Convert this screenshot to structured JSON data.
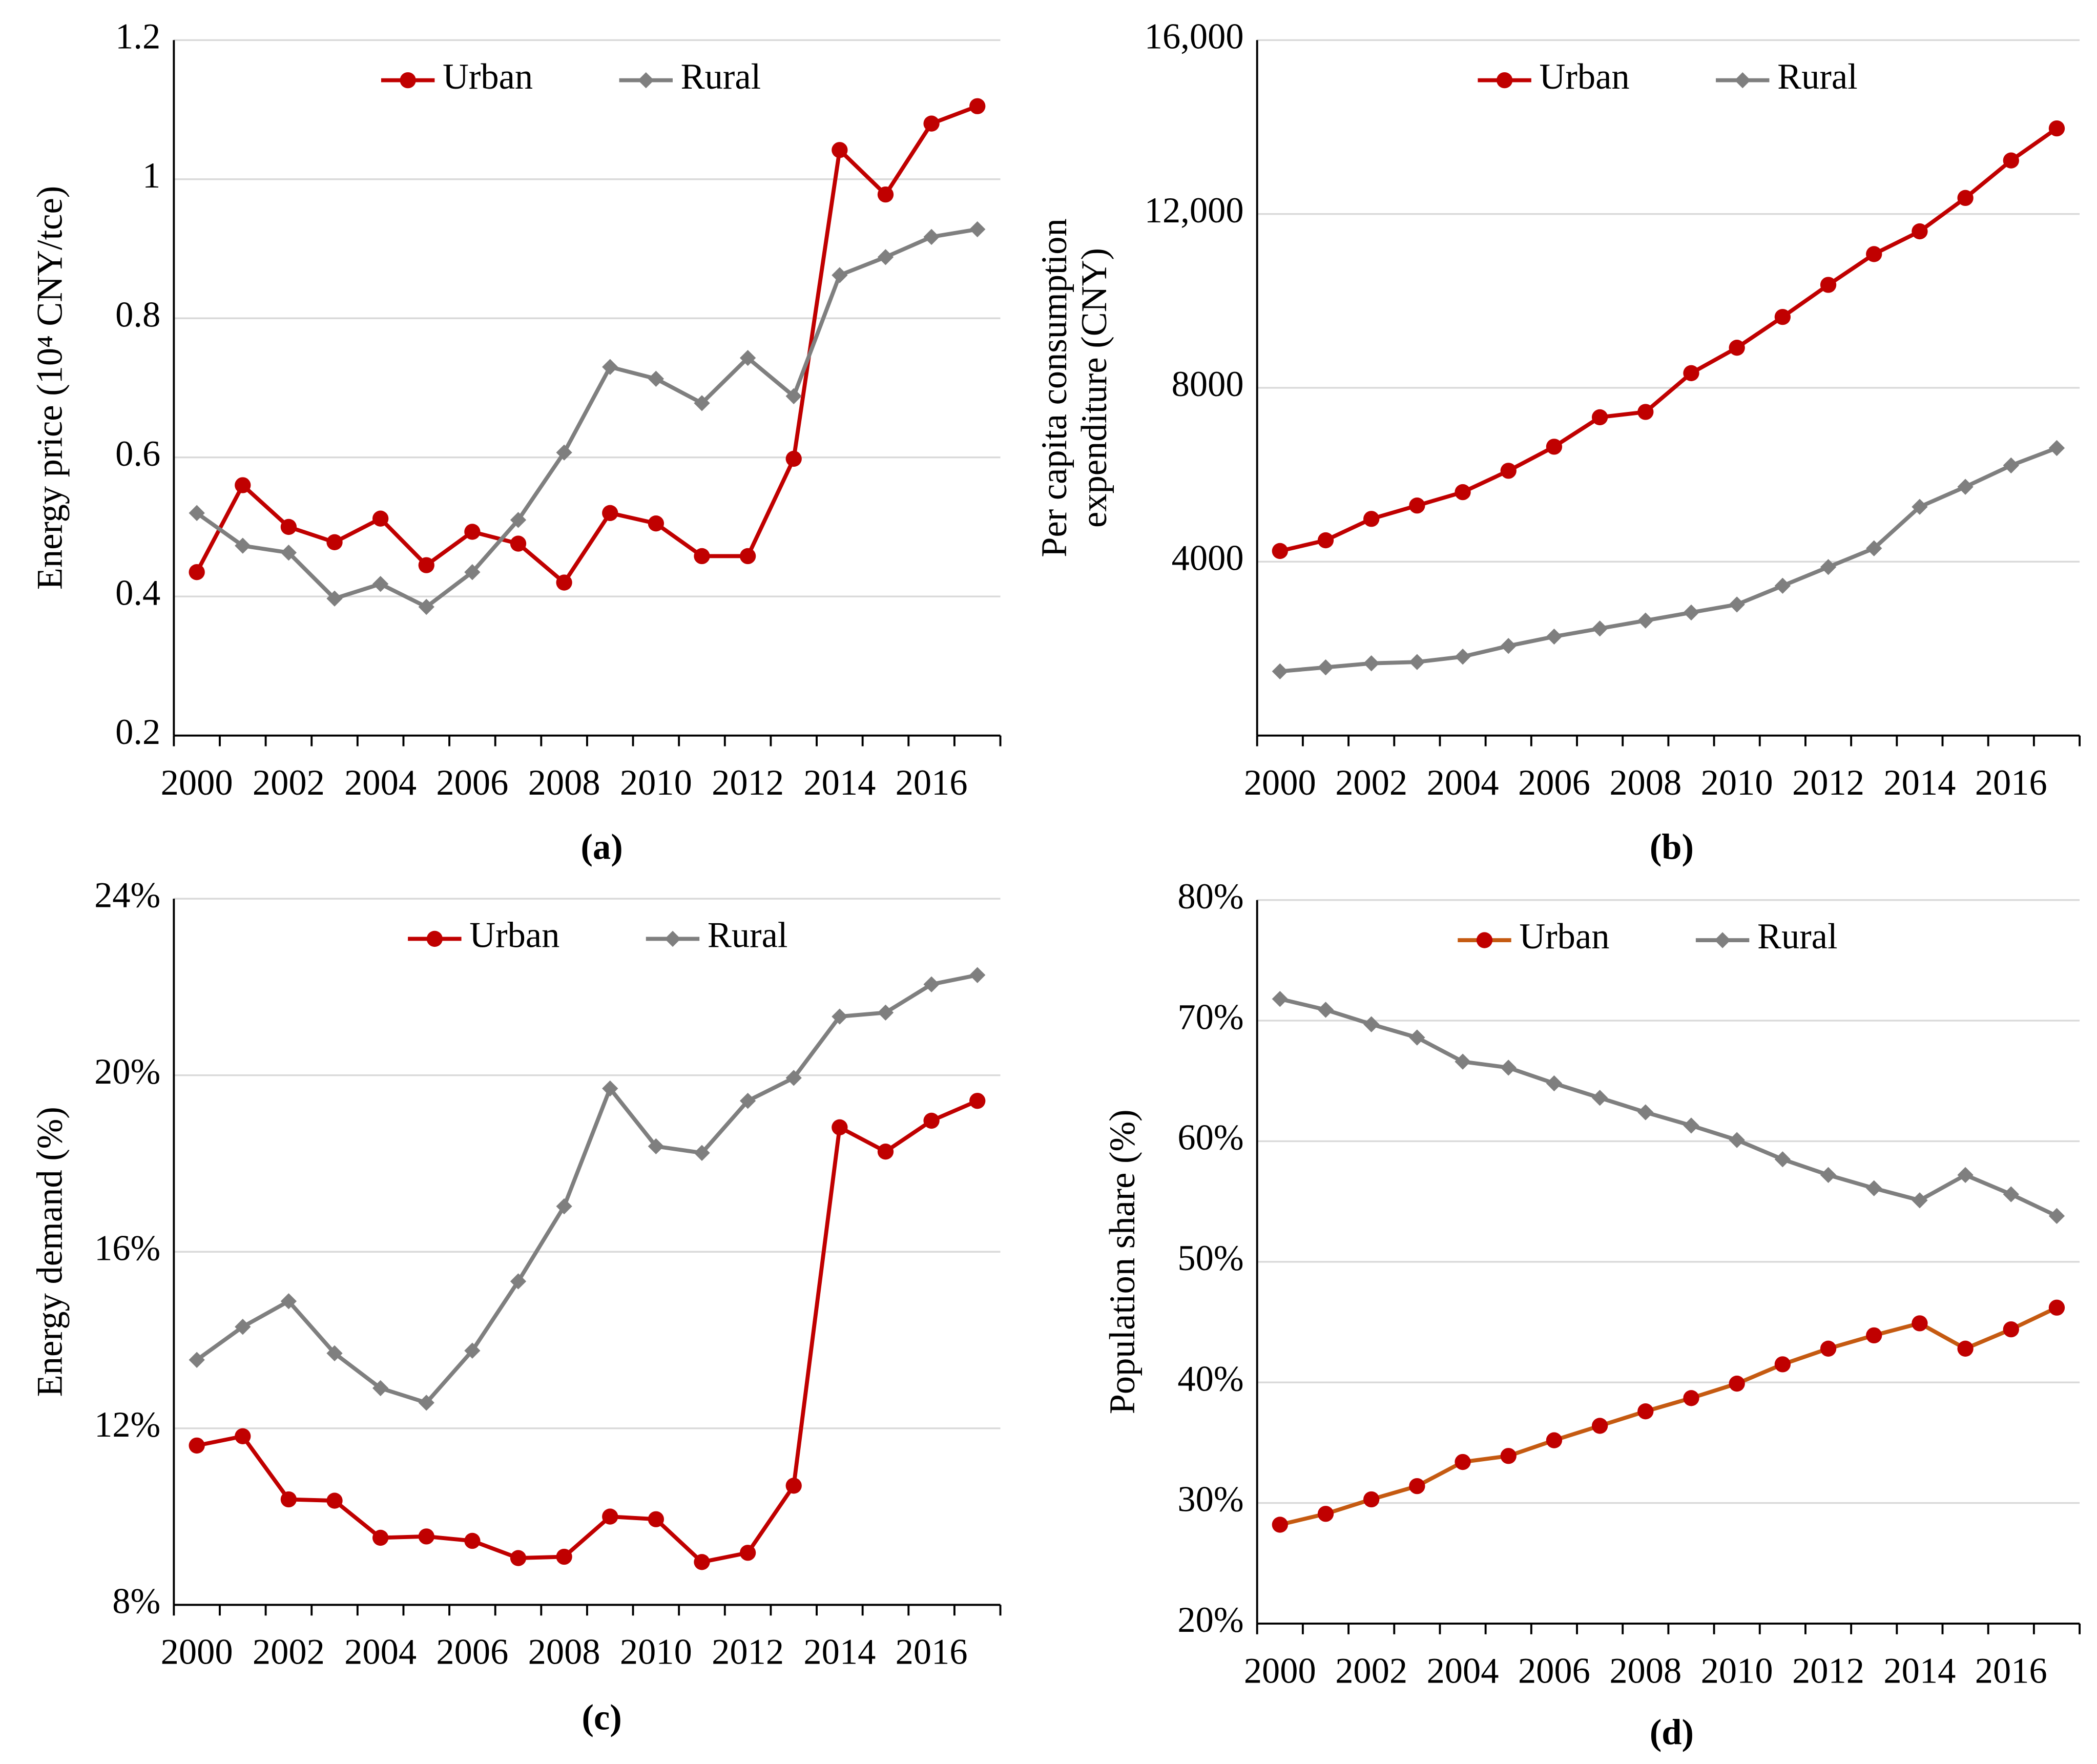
{
  "chart_data": [
    {
      "type": "line",
      "caption": "(a)",
      "ylabel": [
        "Energy price (10⁴ CNY/tce)"
      ],
      "categories": [
        "2000",
        null,
        "2002",
        null,
        "2004",
        null,
        "2006",
        null,
        "2008",
        null,
        "2010",
        null,
        "2012",
        null,
        "2014",
        null,
        "2016",
        null
      ],
      "ylim": [
        0.2,
        1.2
      ],
      "yticks": [
        0.2,
        0.4,
        0.6,
        0.8,
        1,
        1.2
      ],
      "grid": true,
      "series": [
        {
          "name": "Urban",
          "color": "#c00000",
          "marker": "circle",
          "values": [
            0.435,
            0.56,
            0.5,
            0.478,
            0.512,
            0.445,
            0.493,
            0.476,
            0.42,
            0.52,
            0.505,
            0.458,
            0.458,
            0.598,
            1.042,
            0.978,
            1.08,
            1.105
          ]
        },
        {
          "name": "Rural",
          "color": "#7f7f7f",
          "marker": "diamond",
          "values": [
            0.52,
            0.473,
            0.463,
            0.397,
            0.418,
            0.385,
            0.435,
            0.51,
            0.607,
            0.73,
            0.713,
            0.678,
            0.743,
            0.688,
            0.862,
            0.888,
            0.917,
            0.928
          ]
        }
      ]
    },
    {
      "type": "line",
      "caption": "(b)",
      "ylabel": [
        "Per capita consumption",
        "expenditure (CNY)"
      ],
      "categories": [
        "2000",
        null,
        "2002",
        null,
        "2004",
        null,
        "2006",
        null,
        "2008",
        null,
        "2010",
        null,
        "2012",
        null,
        "2014",
        null,
        "2016",
        null
      ],
      "ylim": [
        0,
        16000
      ],
      "yticks": [
        4000,
        8000,
        {
          "value": 12000,
          "label": "12,000"
        },
        {
          "value": 16000,
          "label": "16,000"
        }
      ],
      "grid": true,
      "series": [
        {
          "name": "Urban",
          "color": "#c00000",
          "marker": "circle",
          "values": [
            4246,
            4492,
            4985,
            5292,
            5600,
            6092,
            6646,
            7323,
            7446,
            8338,
            8923,
            9631,
            10369,
            11077,
            11600,
            12369,
            13231,
            13969
          ]
        },
        {
          "name": "Rural",
          "color": "#7f7f7f",
          "marker": "diamond",
          "values": [
            1477,
            1569,
            1662,
            1692,
            1815,
            2062,
            2277,
            2462,
            2646,
            2831,
            3015,
            3446,
            3877,
            4308,
            5262,
            5723,
            6215,
            6615
          ]
        }
      ]
    },
    {
      "type": "line",
      "caption": "(c)",
      "ylabel": [
        "Energy demand (%)"
      ],
      "categories": [
        "2000",
        null,
        "2002",
        null,
        "2004",
        null,
        "2006",
        null,
        "2008",
        null,
        "2010",
        null,
        "2012",
        null,
        "2014",
        null,
        "2016",
        null
      ],
      "ylim": [
        8,
        24
      ],
      "yticks": [
        {
          "value": 8,
          "label": "8%"
        },
        {
          "value": 12,
          "label": "12%"
        },
        {
          "value": 16,
          "label": "16%"
        },
        {
          "value": 20,
          "label": "20%"
        },
        {
          "value": 24,
          "label": "24%"
        }
      ],
      "grid": true,
      "series": [
        {
          "name": "Urban",
          "color": "#c00000",
          "marker": "circle",
          "values": [
            11.61,
            11.82,
            10.39,
            10.36,
            9.52,
            9.55,
            9.45,
            9.06,
            9.09,
            10.0,
            9.94,
            8.97,
            9.18,
            10.7,
            18.82,
            18.27,
            18.97,
            19.42
          ]
        },
        {
          "name": "Rural",
          "color": "#7f7f7f",
          "marker": "diamond",
          "values": [
            13.55,
            14.3,
            14.88,
            13.7,
            12.91,
            12.58,
            13.76,
            15.33,
            17.03,
            19.7,
            18.39,
            18.24,
            19.42,
            19.94,
            21.33,
            21.42,
            22.06,
            22.27
          ]
        }
      ]
    },
    {
      "type": "line",
      "caption": "(d)",
      "ylabel": [
        "Population share (%)"
      ],
      "categories": [
        "2000",
        null,
        "2002",
        null,
        "2004",
        null,
        "2006",
        null,
        "2008",
        null,
        "2010",
        null,
        "2012",
        null,
        "2014",
        null,
        "2016",
        null
      ],
      "ylim": [
        20,
        80
      ],
      "yticks": [
        {
          "value": 20,
          "label": "20%"
        },
        {
          "value": 30,
          "label": "30%"
        },
        {
          "value": 40,
          "label": "40%"
        },
        {
          "value": 50,
          "label": "50%"
        },
        {
          "value": 60,
          "label": "60%"
        },
        {
          "value": 70,
          "label": "70%"
        },
        {
          "value": 80,
          "label": "80%"
        }
      ],
      "grid": true,
      "series": [
        {
          "name": "Urban",
          "color": "#c55a11",
          "marker": "circle",
          "values": [
            28.2,
            29.1,
            30.3,
            31.4,
            33.4,
            33.9,
            35.2,
            36.4,
            37.6,
            38.7,
            39.9,
            41.5,
            42.8,
            43.9,
            44.9,
            42.8,
            44.4,
            46.2
          ]
        },
        {
          "name": "Rural",
          "color": "#7f7f7f",
          "marker": "diamond",
          "values": [
            71.8,
            70.9,
            69.7,
            68.6,
            66.6,
            66.1,
            64.8,
            63.6,
            62.4,
            61.3,
            60.1,
            58.5,
            57.2,
            56.1,
            55.1,
            57.2,
            55.6,
            53.8
          ]
        }
      ]
    }
  ]
}
